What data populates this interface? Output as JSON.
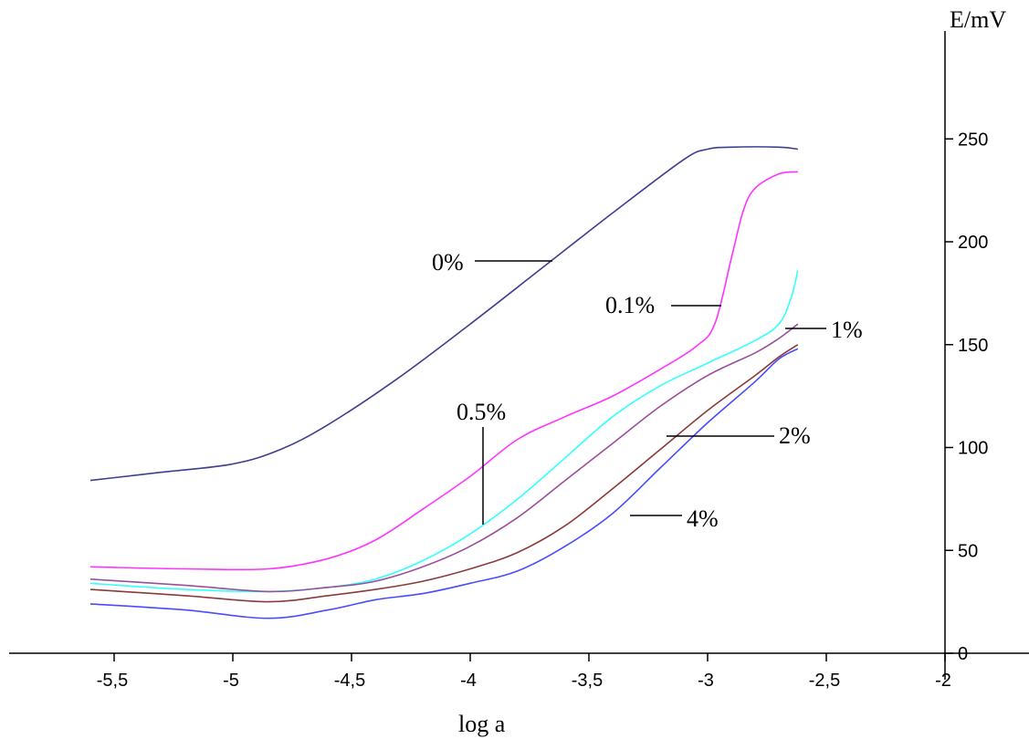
{
  "chart_data": {
    "type": "line",
    "title": "",
    "xlabel": "log a",
    "ylabel": "E/mV",
    "xlim": [
      -6.0,
      -2.0
    ],
    "ylim": [
      0,
      250
    ],
    "x_ticks": [
      -5.5,
      -5,
      -4.5,
      -4,
      -3.5,
      -3,
      -2.5,
      -2
    ],
    "x_tick_labels": [
      "-5,5",
      "-5",
      "-4,5",
      "-4",
      "-3,5",
      "-3",
      "-2,5",
      "-2"
    ],
    "y_ticks": [
      0,
      50,
      100,
      150,
      200,
      250
    ],
    "y_tick_labels": [
      "0",
      "50",
      "100",
      "150",
      "200",
      "250"
    ],
    "grid": false,
    "series": [
      {
        "name": "0%",
        "color": "#3f3f91",
        "x": [
          -5.6,
          -5.3,
          -5.0,
          -4.8,
          -4.6,
          -4.3,
          -4.0,
          -3.7,
          -3.4,
          -3.1,
          -3.0,
          -2.9,
          -2.7,
          -2.62
        ],
        "y": [
          84,
          88,
          92,
          99,
          111,
          134,
          160,
          187,
          214,
          240,
          245,
          246,
          246,
          245
        ]
      },
      {
        "name": "0.1%",
        "color": "#ff33ff",
        "x": [
          -5.6,
          -5.2,
          -4.85,
          -4.6,
          -4.4,
          -4.2,
          -4.0,
          -3.8,
          -3.6,
          -3.4,
          -3.2,
          -3.05,
          -2.97,
          -2.9,
          -2.85,
          -2.8,
          -2.7,
          -2.62
        ],
        "y": [
          42,
          41,
          41,
          46,
          55,
          70,
          86,
          104,
          115,
          125,
          138,
          149,
          160,
          192,
          215,
          226,
          233,
          234
        ]
      },
      {
        "name": "0.5%",
        "color": "#33ffff",
        "x": [
          -5.6,
          -5.2,
          -4.85,
          -4.6,
          -4.4,
          -4.2,
          -4.0,
          -3.8,
          -3.6,
          -3.4,
          -3.2,
          -3.0,
          -2.8,
          -2.7,
          -2.65,
          -2.62
        ],
        "y": [
          34,
          31,
          30,
          32,
          36,
          45,
          58,
          75,
          95,
          115,
          130,
          141,
          152,
          160,
          172,
          186
        ]
      },
      {
        "name": "1%",
        "color": "#9a4f9a",
        "x": [
          -5.6,
          -5.2,
          -4.85,
          -4.6,
          -4.4,
          -4.2,
          -4.0,
          -3.8,
          -3.6,
          -3.4,
          -3.2,
          -3.0,
          -2.8,
          -2.7,
          -2.62
        ],
        "y": [
          36,
          33,
          30,
          32,
          35,
          42,
          52,
          66,
          84,
          102,
          120,
          135,
          146,
          153,
          160
        ]
      },
      {
        "name": "2%",
        "color": "#8b3a3a",
        "x": [
          -5.6,
          -5.2,
          -4.85,
          -4.6,
          -4.4,
          -4.2,
          -4.0,
          -3.8,
          -3.6,
          -3.4,
          -3.2,
          -3.0,
          -2.8,
          -2.7,
          -2.62
        ],
        "y": [
          31,
          28,
          25,
          28,
          31,
          35,
          41,
          49,
          62,
          80,
          99,
          118,
          135,
          144,
          150
        ]
      },
      {
        "name": "4%",
        "color": "#4b4bff",
        "x": [
          -5.6,
          -5.2,
          -4.85,
          -4.6,
          -4.4,
          -4.2,
          -4.0,
          -3.8,
          -3.6,
          -3.4,
          -3.2,
          -3.0,
          -2.8,
          -2.7,
          -2.62
        ],
        "y": [
          24,
          21,
          17,
          21,
          26,
          29,
          34,
          40,
          52,
          68,
          90,
          112,
          132,
          143,
          148
        ]
      }
    ],
    "annotations": [
      {
        "text": "0%",
        "series": "0%"
      },
      {
        "text": "0.1%",
        "series": "0.1%"
      },
      {
        "text": "0.5%",
        "series": "0.5%"
      },
      {
        "text": "1%",
        "series": "1%"
      },
      {
        "text": "2%",
        "series": "2%"
      },
      {
        "text": "4%",
        "series": "4%"
      }
    ]
  }
}
